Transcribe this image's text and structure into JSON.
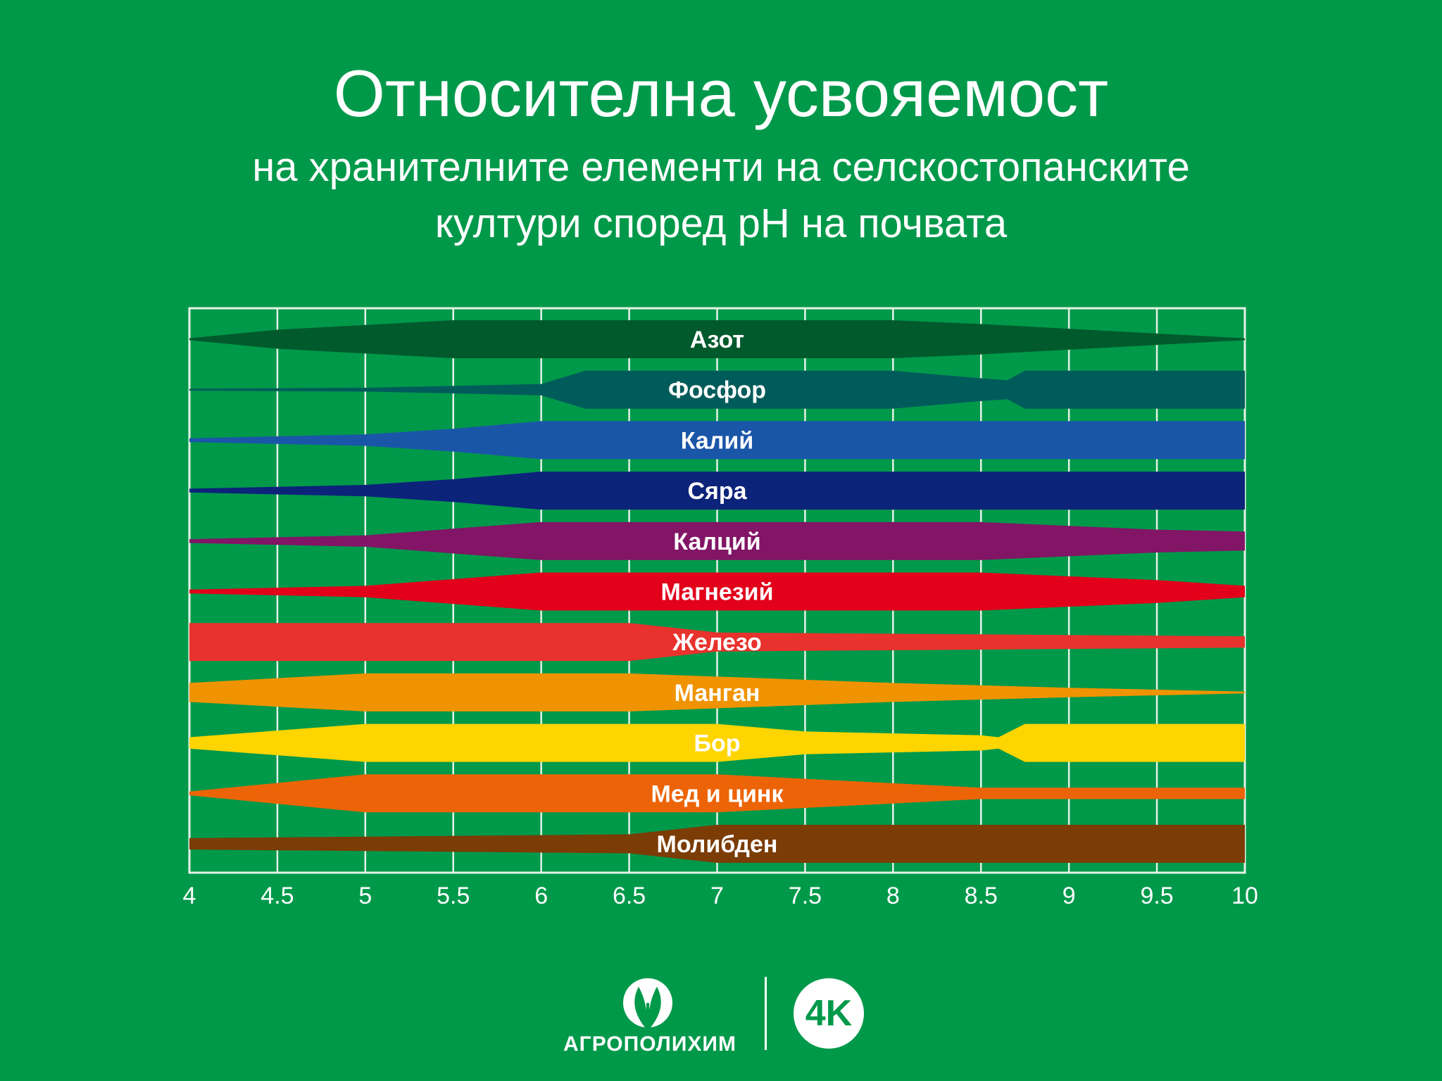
{
  "title": "Относителна усвояемост",
  "subtitle_line1": "на хранителните елементи на селскостопанските",
  "subtitle_line2": "култури според рН на почвата",
  "brand": "АГРОПОЛИХИМ",
  "badge": "4K",
  "chart_data": {
    "type": "area",
    "x_ticks": [
      "4",
      "4.5",
      "5",
      "5.5",
      "6",
      "6.5",
      "7",
      "7.5",
      "8",
      "8.5",
      "9",
      "9.5",
      "10"
    ],
    "xlim": [
      4,
      10
    ],
    "grid": true,
    "series": [
      {
        "name": "Азот",
        "color": "#005a2c",
        "ph": [
          4,
          4.5,
          5.5,
          8,
          8.5,
          9.5,
          10
        ],
        "availability": [
          0.05,
          0.5,
          1,
          1,
          0.8,
          0.3,
          0.05
        ]
      },
      {
        "name": "Фосфор",
        "color": "#005c5a",
        "ph": [
          4,
          5,
          6,
          6.25,
          8,
          8.5,
          8.65,
          8.75,
          10
        ],
        "availability": [
          0.05,
          0.1,
          0.3,
          1,
          1,
          0.6,
          0.5,
          1,
          1
        ]
      },
      {
        "name": "Калий",
        "color": "#1a56a8",
        "ph": [
          4,
          5,
          5.5,
          6,
          10
        ],
        "availability": [
          0.1,
          0.3,
          0.6,
          1,
          1
        ]
      },
      {
        "name": "Сяра",
        "color": "#0c237a",
        "ph": [
          4,
          5,
          5.5,
          6,
          10
        ],
        "availability": [
          0.1,
          0.3,
          0.6,
          1,
          1
        ]
      },
      {
        "name": "Калций",
        "color": "#821566",
        "ph": [
          4,
          5,
          6,
          8.5,
          9.5,
          10
        ],
        "availability": [
          0.1,
          0.3,
          1,
          1,
          0.6,
          0.5
        ]
      },
      {
        "name": "Магнезий",
        "color": "#e2001a",
        "ph": [
          4,
          5,
          6,
          8.5,
          9.5,
          10
        ],
        "availability": [
          0.1,
          0.3,
          1,
          1,
          0.6,
          0.3
        ]
      },
      {
        "name": "Железо",
        "color": "#e8322d",
        "ph": [
          4,
          6.5,
          7,
          10
        ],
        "availability": [
          1,
          1,
          0.5,
          0.3
        ]
      },
      {
        "name": "Манган",
        "color": "#f09300",
        "ph": [
          4,
          5,
          6.5,
          8,
          9,
          10
        ],
        "availability": [
          0.5,
          1,
          1,
          0.5,
          0.25,
          0.05
        ]
      },
      {
        "name": "Бор",
        "color": "#ffd500",
        "ph": [
          4,
          5,
          7,
          7.5,
          8.5,
          8.6,
          8.75,
          10
        ],
        "availability": [
          0.3,
          1,
          1,
          0.6,
          0.4,
          0.3,
          1,
          1
        ]
      },
      {
        "name": "Мед и цинк",
        "color": "#ec6407",
        "ph": [
          4,
          5,
          7,
          8.5,
          10
        ],
        "availability": [
          0.1,
          1,
          1,
          0.3,
          0.3
        ]
      },
      {
        "name": "Молибден",
        "color": "#7b3c06",
        "ph": [
          4,
          6.5,
          7,
          10
        ],
        "availability": [
          0.3,
          0.5,
          1,
          1
        ]
      }
    ]
  }
}
